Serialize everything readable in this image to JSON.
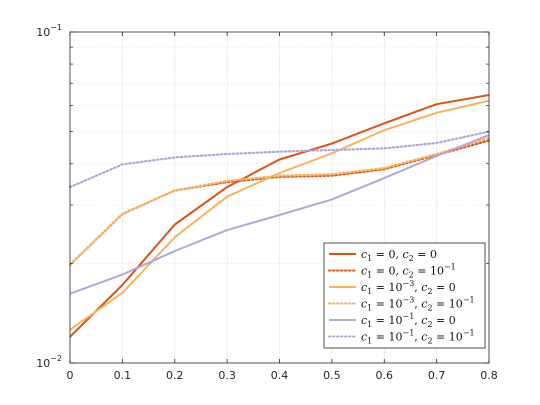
{
  "chart_data": {
    "type": "line",
    "title": "",
    "xlabel": "",
    "ylabel": "",
    "xlim": [
      0,
      0.8
    ],
    "ylim": [
      0.01,
      0.1
    ],
    "yscale": "log",
    "grid": true,
    "legend_position": "bottom-right",
    "x": [
      0,
      0.1,
      0.2,
      0.3,
      0.4,
      0.5,
      0.6,
      0.7,
      0.8
    ],
    "x_tick_labels": [
      "0",
      "0.1",
      "0.2",
      "0.3",
      "0.4",
      "0.5",
      "0.6",
      "0.7",
      "0.8"
    ],
    "y_tick_labels": [
      {
        "value": 0.01,
        "base": "10",
        "exp": "-2"
      },
      {
        "value": 0.1,
        "base": "10",
        "exp": "-1"
      }
    ],
    "series": [
      {
        "name": "c1 = 0, c2 = 0",
        "color": "#D95319",
        "style": "solid",
        "values": [
          0.012,
          0.0172,
          0.0262,
          0.034,
          0.0412,
          0.046,
          0.053,
          0.0605,
          0.0645
        ]
      },
      {
        "name": "c1 = 0, c2 = 10^-1",
        "color": "#D95319",
        "style": "dotted",
        "values": [
          0.0198,
          0.0282,
          0.0332,
          0.0352,
          0.0365,
          0.0368,
          0.0385,
          0.0425,
          0.047
        ]
      },
      {
        "name": "c1 = 10^-3, c2 = 0",
        "color": "#F7B35C",
        "style": "solid",
        "values": [
          0.0126,
          0.0163,
          0.024,
          0.0318,
          0.0375,
          0.043,
          0.0505,
          0.057,
          0.062
        ]
      },
      {
        "name": "c1 = 10^-3, c2 = 10^-1",
        "color": "#F7B35C",
        "style": "dotted",
        "values": [
          0.0198,
          0.0282,
          0.0332,
          0.0355,
          0.0368,
          0.0372,
          0.0388,
          0.0428,
          0.0478
        ]
      },
      {
        "name": "c1 = 10^-1, c2 = 0",
        "color": "#B3A7D6",
        "style": "solid",
        "values": [
          0.0162,
          0.0185,
          0.0218,
          0.0252,
          0.028,
          0.0312,
          0.0362,
          0.0422,
          0.0488
        ]
      },
      {
        "name": "c1 = 10^-1, c2 = 10^-1",
        "color": "#B3A7D6",
        "style": "dotted",
        "values": [
          0.034,
          0.0398,
          0.0418,
          0.0428,
          0.0435,
          0.044,
          0.0445,
          0.0462,
          0.05
        ]
      }
    ],
    "legend": [
      {
        "c1": "0",
        "c1_exp": "",
        "c2": "0",
        "c2_exp": ""
      },
      {
        "c1": "0",
        "c1_exp": "",
        "c2": "10",
        "c2_exp": "−1"
      },
      {
        "c1": "10",
        "c1_exp": "−3",
        "c2": "0",
        "c2_exp": ""
      },
      {
        "c1": "10",
        "c1_exp": "−3",
        "c2": "10",
        "c2_exp": "−1"
      },
      {
        "c1": "10",
        "c1_exp": "−1",
        "c2": "0",
        "c2_exp": ""
      },
      {
        "c1": "10",
        "c1_exp": "−1",
        "c2": "10",
        "c2_exp": "−1"
      }
    ]
  }
}
